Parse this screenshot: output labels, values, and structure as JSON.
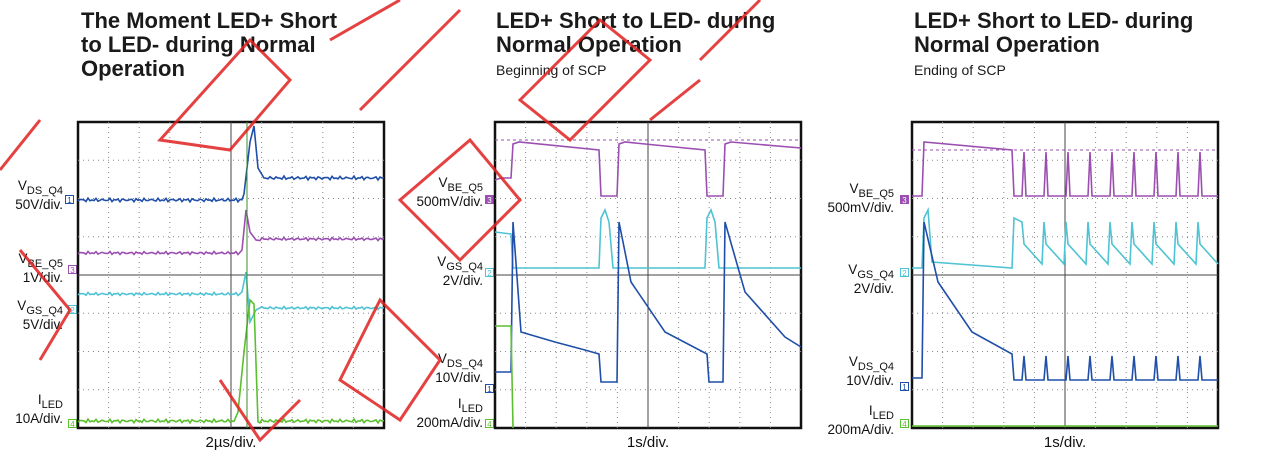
{
  "chart_data": [
    {
      "type": "line",
      "title": "The Moment LED+ Short to LED- during Normal Operation",
      "title_lines": [
        "The Moment LED+ Short",
        "to LED- during Normal",
        "Operation"
      ],
      "subtitle": "",
      "xlabel": "2µs/div.",
      "series": [
        {
          "name": "VDS_Q4",
          "label_main": "V",
          "label_sub": "DS_Q4",
          "scale": "50V/div.",
          "channel": "1",
          "color": "#1f4fa8"
        },
        {
          "name": "VBE_Q5",
          "label_main": "V",
          "label_sub": "BE_Q5",
          "scale": "1V/div.",
          "channel": "3",
          "color": "#9b4fb0"
        },
        {
          "name": "VGS_Q4",
          "label_main": "V",
          "label_sub": "GS_Q4",
          "scale": "5V/div.",
          "channel": "2",
          "color": "#4fc3d4"
        },
        {
          "name": "ILED",
          "label_main": "I",
          "label_sub": "LED",
          "scale": "10A/div.",
          "channel": "4",
          "color": "#5bbf2e"
        }
      ]
    },
    {
      "type": "line",
      "title": "LED+ Short to LED- during Normal Operation",
      "title_lines": [
        "LED+ Short to LED- during",
        "Normal Operation"
      ],
      "subtitle": "Beginning of SCP",
      "xlabel": "1s/div.",
      "series": [
        {
          "name": "VBE_Q5",
          "label_main": "V",
          "label_sub": "BE_Q5",
          "scale": "500mV/div.",
          "channel": "3",
          "color": "#9b4fb0"
        },
        {
          "name": "VGS_Q4",
          "label_main": "V",
          "label_sub": "GS_Q4",
          "scale": "2V/div.",
          "channel": "2",
          "color": "#4fc3d4"
        },
        {
          "name": "VDS_Q4",
          "label_main": "V",
          "label_sub": "DS_Q4",
          "scale": "10V/div.",
          "channel": "1",
          "color": "#1f4fa8"
        },
        {
          "name": "ILED",
          "label_main": "I",
          "label_sub": "LED",
          "scale": "200mA/div.",
          "channel": "4",
          "color": "#5bbf2e"
        }
      ]
    },
    {
      "type": "line",
      "title": "LED+ Short to LED- during Normal Operation",
      "title_lines": [
        "LED+ Short to LED- during",
        "Normal Operation"
      ],
      "subtitle": "Ending of SCP",
      "xlabel": "1s/div.",
      "series": [
        {
          "name": "VBE_Q5",
          "label_main": "V",
          "label_sub": "BE_Q5",
          "scale": "500mV/div.",
          "channel": "3",
          "color": "#9b4fb0"
        },
        {
          "name": "VGS_Q4",
          "label_main": "V",
          "label_sub": "GS_Q4",
          "scale": "2V/div.",
          "channel": "2",
          "color": "#4fc3d4"
        },
        {
          "name": "VDS_Q4",
          "label_main": "V",
          "label_sub": "DS_Q4",
          "scale": "10V/div.",
          "channel": "1",
          "color": "#1f4fa8"
        },
        {
          "name": "ILED",
          "label_main": "I",
          "label_sub": "LED",
          "scale": "200mA/div.",
          "channel": "4",
          "color": "#5bbf2e"
        }
      ]
    }
  ],
  "watermark": {
    "color": "#e02020"
  }
}
